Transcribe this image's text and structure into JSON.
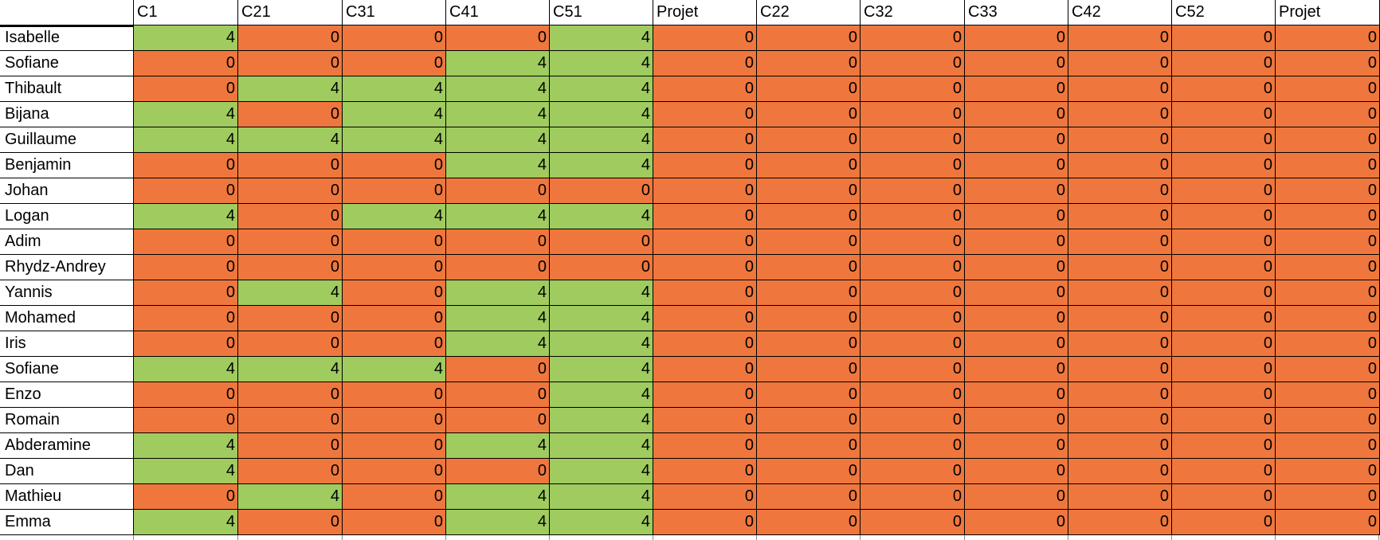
{
  "headers": [
    "",
    "C1",
    "C21",
    "C31",
    "C41",
    "C51",
    "Projet",
    "C22",
    "C32",
    "C33",
    "C42",
    "C52",
    "Projet"
  ],
  "colors": {
    "pass": "#9fcb5f",
    "fail": "#ef773d"
  },
  "rows": [
    {
      "name": "Isabelle",
      "values": [
        4,
        0,
        0,
        0,
        4,
        0,
        0,
        0,
        0,
        0,
        0,
        0
      ]
    },
    {
      "name": "Sofiane",
      "values": [
        0,
        0,
        0,
        4,
        4,
        0,
        0,
        0,
        0,
        0,
        0,
        0
      ]
    },
    {
      "name": "Thibault",
      "values": [
        0,
        4,
        4,
        4,
        4,
        0,
        0,
        0,
        0,
        0,
        0,
        0
      ]
    },
    {
      "name": "Bijana",
      "values": [
        4,
        0,
        4,
        4,
        4,
        0,
        0,
        0,
        0,
        0,
        0,
        0
      ]
    },
    {
      "name": "Guillaume",
      "values": [
        4,
        4,
        4,
        4,
        4,
        0,
        0,
        0,
        0,
        0,
        0,
        0
      ]
    },
    {
      "name": "Benjamin",
      "values": [
        0,
        0,
        0,
        4,
        4,
        0,
        0,
        0,
        0,
        0,
        0,
        0
      ]
    },
    {
      "name": "Johan",
      "values": [
        0,
        0,
        0,
        0,
        0,
        0,
        0,
        0,
        0,
        0,
        0,
        0
      ]
    },
    {
      "name": "Logan",
      "values": [
        4,
        0,
        4,
        4,
        4,
        0,
        0,
        0,
        0,
        0,
        0,
        0
      ]
    },
    {
      "name": "Adim",
      "values": [
        0,
        0,
        0,
        0,
        0,
        0,
        0,
        0,
        0,
        0,
        0,
        0
      ]
    },
    {
      "name": "Rhydz-Andrey",
      "values": [
        0,
        0,
        0,
        0,
        0,
        0,
        0,
        0,
        0,
        0,
        0,
        0
      ]
    },
    {
      "name": "Yannis",
      "values": [
        0,
        4,
        0,
        4,
        4,
        0,
        0,
        0,
        0,
        0,
        0,
        0
      ]
    },
    {
      "name": "Mohamed",
      "values": [
        0,
        0,
        0,
        4,
        4,
        0,
        0,
        0,
        0,
        0,
        0,
        0
      ]
    },
    {
      "name": "Iris",
      "values": [
        0,
        0,
        0,
        4,
        4,
        0,
        0,
        0,
        0,
        0,
        0,
        0
      ]
    },
    {
      "name": "Sofiane",
      "values": [
        4,
        4,
        4,
        0,
        4,
        0,
        0,
        0,
        0,
        0,
        0,
        0
      ]
    },
    {
      "name": "Enzo",
      "values": [
        0,
        0,
        0,
        0,
        4,
        0,
        0,
        0,
        0,
        0,
        0,
        0
      ]
    },
    {
      "name": "Romain",
      "values": [
        0,
        0,
        0,
        0,
        4,
        0,
        0,
        0,
        0,
        0,
        0,
        0
      ]
    },
    {
      "name": "Abderamine",
      "values": [
        4,
        0,
        0,
        4,
        4,
        0,
        0,
        0,
        0,
        0,
        0,
        0
      ]
    },
    {
      "name": "Dan",
      "values": [
        4,
        0,
        0,
        0,
        4,
        0,
        0,
        0,
        0,
        0,
        0,
        0
      ]
    },
    {
      "name": "Mathieu",
      "values": [
        0,
        4,
        0,
        4,
        4,
        0,
        0,
        0,
        0,
        0,
        0,
        0
      ]
    },
    {
      "name": "Emma",
      "values": [
        4,
        0,
        0,
        4,
        4,
        0,
        0,
        0,
        0,
        0,
        0,
        0
      ]
    }
  ]
}
